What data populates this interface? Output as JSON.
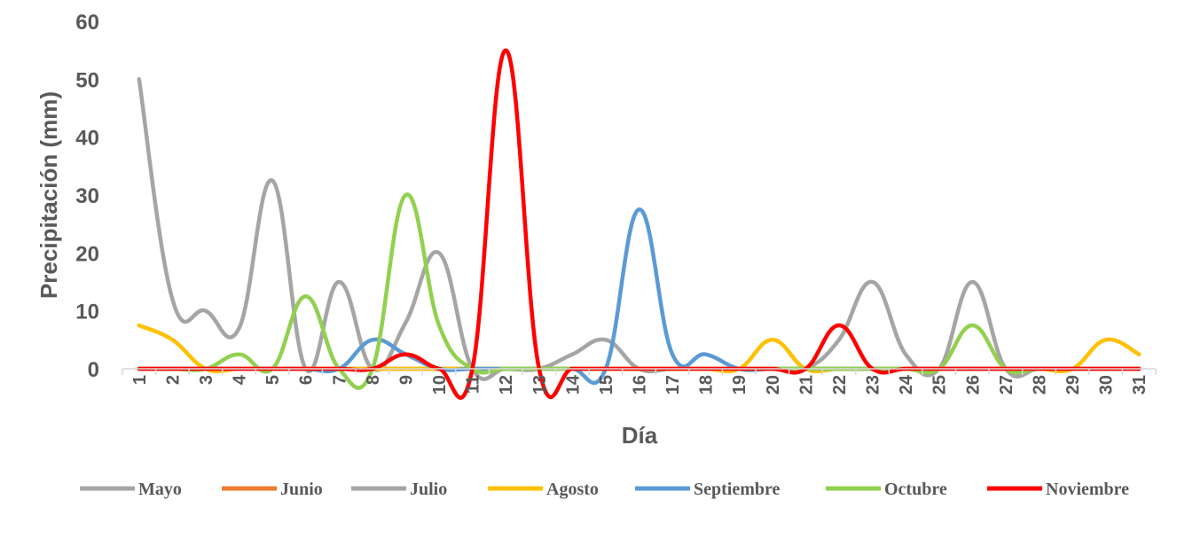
{
  "chart_data": {
    "type": "line",
    "title": "",
    "xlabel": "Día",
    "ylabel": "Precipitación (mm)",
    "ylim": [
      0,
      60
    ],
    "yticks": [
      0,
      10,
      20,
      30,
      40,
      50,
      60
    ],
    "categories": [
      "1",
      "2",
      "3",
      "4",
      "5",
      "6",
      "7",
      "8",
      "9",
      "10",
      "11",
      "12",
      "13",
      "14",
      "15",
      "16",
      "17",
      "18",
      "19",
      "20",
      "21",
      "22",
      "23",
      "24",
      "25",
      "26",
      "27",
      "28",
      "29",
      "30",
      "31"
    ],
    "grid": false,
    "legend_position": "bottom",
    "series": [
      {
        "name": "Mayo",
        "color": "#A5A5A5",
        "values": [
          50,
          12,
          10,
          7,
          32.5,
          0,
          15,
          0,
          8,
          20,
          0,
          0,
          0,
          2.5,
          5,
          0,
          0,
          0,
          0,
          0,
          0,
          0,
          0,
          0,
          0,
          0,
          0,
          0,
          0,
          0,
          0
        ]
      },
      {
        "name": "Junio",
        "color": "#ED7D31",
        "values": [
          0,
          0,
          0,
          0,
          0,
          0,
          0,
          0,
          0,
          0,
          0,
          0,
          0,
          0,
          0,
          0,
          0,
          0,
          0,
          0,
          0,
          0,
          0,
          0,
          0,
          0,
          0,
          0,
          0,
          0,
          0
        ]
      },
      {
        "name": "Julio",
        "color": "#A5A5A5",
        "values": [
          0,
          0,
          0,
          0,
          0,
          0,
          0,
          0,
          0,
          0,
          0,
          0,
          0,
          0,
          0,
          0,
          0,
          0,
          0,
          0,
          0,
          5,
          15,
          2.5,
          0,
          15,
          0,
          0,
          0,
          0,
          0
        ]
      },
      {
        "name": "Agosto",
        "color": "#FFC000",
        "values": [
          7.5,
          5,
          0,
          0,
          0,
          0,
          0,
          0,
          0,
          0,
          0,
          0,
          0,
          0,
          0,
          0,
          0,
          0,
          0,
          5,
          0,
          0,
          0,
          0,
          0,
          0,
          0,
          0,
          0,
          5,
          2.5
        ]
      },
      {
        "name": "Septiembre",
        "color": "#5B9BD5",
        "values": [
          0,
          0,
          0,
          0,
          0,
          0,
          0,
          5,
          2.5,
          0,
          0,
          0,
          0,
          0,
          0,
          27.5,
          2.5,
          2.5,
          0,
          0,
          0,
          0,
          0,
          0,
          0,
          0,
          0,
          0,
          0,
          0,
          0
        ]
      },
      {
        "name": "Octubre",
        "color": "#92D050",
        "values": [
          0,
          0,
          0,
          2.5,
          0,
          12.5,
          0,
          0,
          30,
          7.5,
          0,
          0,
          0,
          0,
          0,
          0,
          0,
          0,
          0,
          0,
          0,
          0,
          0,
          0,
          0,
          7.5,
          0,
          0,
          0,
          0,
          0
        ]
      },
      {
        "name": "Noviembre",
        "color": "#FF0000",
        "values": [
          0,
          0,
          0,
          0,
          0,
          0,
          0,
          0,
          2.5,
          0,
          0,
          55,
          0,
          0,
          0,
          0,
          0,
          0,
          0,
          0,
          0,
          7.5,
          0,
          0,
          0,
          0,
          0,
          0,
          0,
          0,
          0
        ]
      }
    ]
  }
}
